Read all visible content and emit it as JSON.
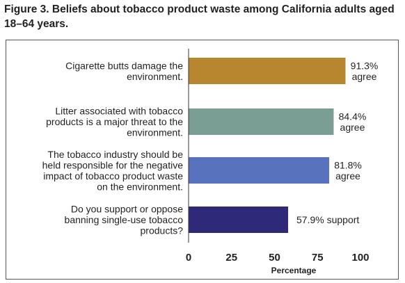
{
  "figure_title": "Figure 3. Beliefs about tobacco product waste among California adults aged 18–64 years.",
  "chart_data": {
    "type": "bar",
    "orientation": "horizontal",
    "title": "",
    "xlabel": "Percentage",
    "ylabel": "",
    "xlim": [
      0,
      100
    ],
    "ticks": [
      "0",
      "25",
      "50",
      "75",
      "100"
    ],
    "grid": false,
    "categories": [
      [
        "Cigarette butts damage the",
        "environment."
      ],
      [
        "Litter associated with tobacco",
        "products is a major threat to the",
        "environment."
      ],
      [
        "The tobacco industry should be",
        "held responsible for the negative",
        "impact of tobacco product waste",
        "on the environment."
      ],
      [
        "Do you support or oppose",
        "banning single-use tobacco",
        "products?"
      ]
    ],
    "values": [
      91.3,
      84.4,
      81.8,
      57.9
    ],
    "value_labels": [
      [
        "91.3%",
        "agree"
      ],
      [
        "84.4%",
        "agree"
      ],
      [
        "81.8%",
        "agree"
      ],
      [
        "57.9% support"
      ]
    ],
    "colors": [
      "#b8862e",
      "#7a9e94",
      "#5872be",
      "#2e2a78"
    ]
  }
}
